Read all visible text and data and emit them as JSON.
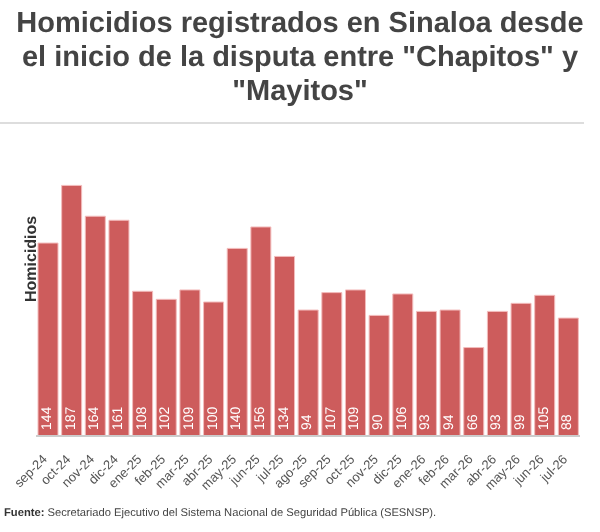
{
  "chart_data": {
    "type": "bar",
    "title": "Homicidios registrados en Sinaloa desde el inicio de la disputa entre \"Chapitos\" y \"Mayitos\"",
    "ylabel": "Homicidios",
    "categories": [
      "sep-24",
      "oct-24",
      "nov-24",
      "dic-24",
      "ene-25",
      "feb-25",
      "mar-25",
      "abr-25",
      "may-25",
      "jun-25",
      "jul-25",
      "ago-25",
      "sep-25",
      "oct-25",
      "nov-25",
      "dic-25",
      "ene-26",
      "feb-26",
      "mar-26",
      "abr-26",
      "may-26",
      "jun-26",
      "jul-26"
    ],
    "values": [
      144,
      187,
      164,
      161,
      108,
      102,
      109,
      100,
      140,
      156,
      134,
      94,
      107,
      109,
      90,
      106,
      93,
      94,
      66,
      93,
      99,
      105,
      88
    ],
    "color": "#cd5c5c",
    "data_labels": true,
    "annotations": [
      "Fuente: Secretariado Ejecutivo del Sistema Nacional de Seguridad Pública (SESNSP)."
    ]
  }
}
